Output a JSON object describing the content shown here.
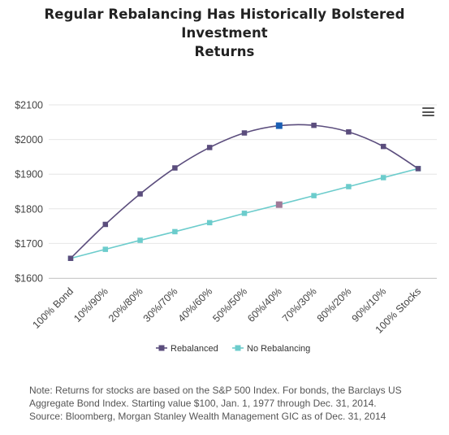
{
  "title_lines": [
    "Regular Rebalancing Has Historically Bolstered Investment",
    "Returns"
  ],
  "chart_data": {
    "type": "line",
    "title": "Regular Rebalancing Has Historically Bolstered Investment Returns",
    "categories": [
      "100% Bond",
      "10%/90%",
      "20%/80%",
      "30%/70%",
      "40%/60%",
      "50%/50%",
      "60%/40%",
      "70%/30%",
      "80%/20%",
      "90%/10%",
      "100% Stocks"
    ],
    "series": [
      {
        "name": "Rebalanced",
        "color": "#5b4d7d",
        "values": [
          1657,
          1755,
          1843,
          1918,
          1977,
          2019,
          2040,
          2041,
          2022,
          1980,
          1916
        ]
      },
      {
        "name": "No Rebalancing",
        "color": "#6ccccc",
        "values": [
          1657,
          1683,
          1709,
          1734,
          1760,
          1787,
          1812,
          1838,
          1864,
          1890,
          1916
        ]
      }
    ],
    "highlighted_points": [
      {
        "series": "Rebalanced",
        "category": "60%/40%",
        "color": "#1a5fb4"
      },
      {
        "series": "No Rebalancing",
        "category": "60%/40%",
        "color": "#a07a98"
      }
    ],
    "ylim": [
      1600,
      2100
    ],
    "yticks": [
      1600,
      1700,
      1800,
      1900,
      2000,
      2100
    ],
    "ytick_labels": [
      "$1600",
      "$1700",
      "$1800",
      "$1900",
      "$2000",
      "$2100"
    ],
    "xlabel": "",
    "ylabel": "",
    "grid": "horizontal",
    "legend": "bottom-center"
  },
  "menu": {
    "icon": "hamburger-menu-icon"
  },
  "notes": [
    "Note: Returns for stocks are based on the S&P 500 Index. For bonds, the Barclays US",
    "Aggregate Bond Index. Starting value $100, Jan. 1, 1977 through Dec. 31, 2014.",
    "Source: Bloomberg, Morgan Stanley Wealth Management GIC as of Dec. 31, 2014"
  ]
}
